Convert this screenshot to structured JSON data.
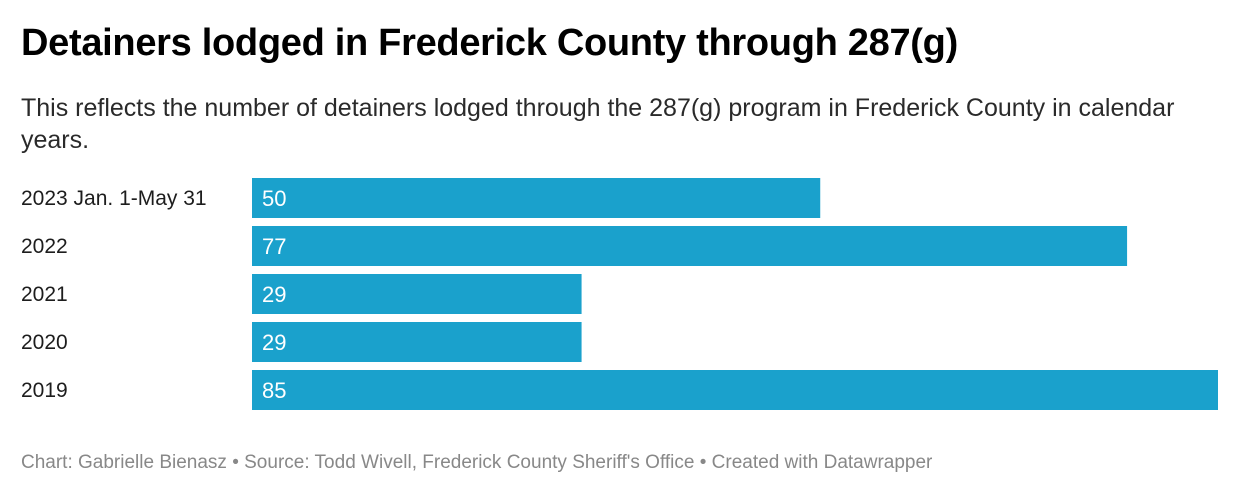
{
  "chart_data": {
    "type": "bar",
    "orientation": "horizontal",
    "title": "Detainers lodged in Frederick County through 287(g)",
    "subtitle": "This reflects the number of detainers lodged through the 287(g) program in Frederick County in calendar years.",
    "categories": [
      "2023 Jan. 1-May 31",
      "2022",
      "2021",
      "2020",
      "2019"
    ],
    "values": [
      50,
      77,
      29,
      29,
      85
    ],
    "xlim": [
      0,
      85
    ],
    "grid": false,
    "data_labels": true,
    "bar_color": "#1aa1cc",
    "label_color": "#ffffff"
  },
  "footer": "Chart: Gabrielle Bienasz • Source: Todd Wivell, Frederick County Sheriff's Office • Created with Datawrapper"
}
